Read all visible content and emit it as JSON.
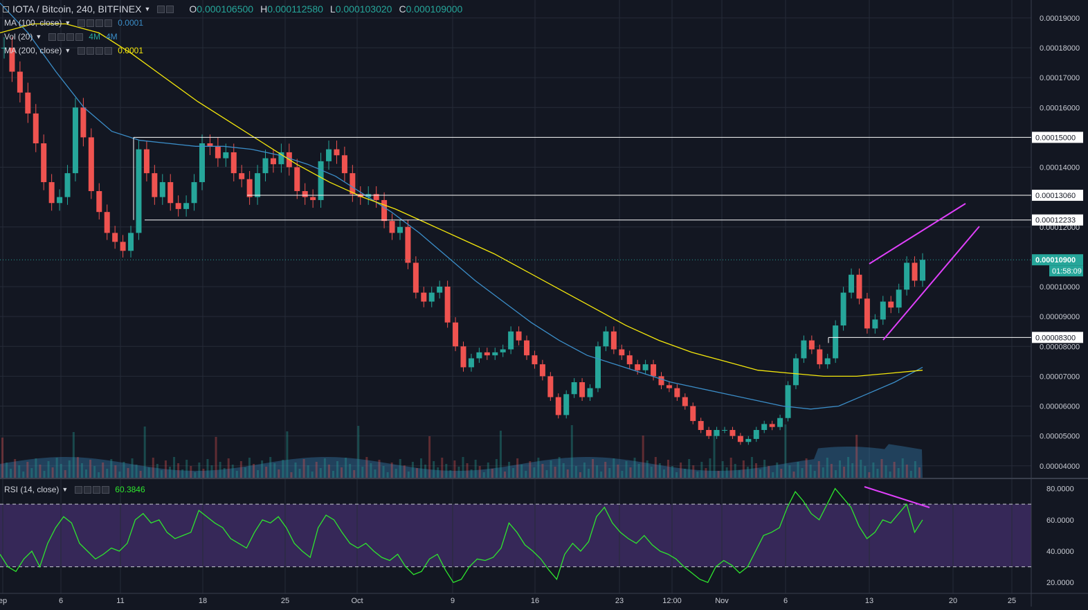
{
  "header": {
    "symbol": "IOTA / Bitcoin, 240, BITFINEX",
    "ohlc": [
      {
        "k": "O",
        "v": "0.000106500"
      },
      {
        "k": "H",
        "v": "0.000112580"
      },
      {
        "k": "L",
        "v": "0.000103020"
      },
      {
        "k": "C",
        "v": "0.000109000"
      }
    ]
  },
  "indicators": [
    {
      "label": "MA (100, close)",
      "values": [
        {
          "text": "0.0001",
          "color": "#3b8ec9"
        }
      ]
    },
    {
      "label": "Vol (20)",
      "values": [
        {
          "text": "4M",
          "color": "#26a69a"
        },
        {
          "text": "4M",
          "color": "#3b8ec9"
        }
      ]
    },
    {
      "label": "MA (200, close)",
      "values": [
        {
          "text": "0.0001",
          "color": "#f5e80b"
        }
      ]
    }
  ],
  "rsi_legend": {
    "label": "RSI (14, close)",
    "value": "60.3846",
    "value_color": "#2ee62e"
  },
  "colors": {
    "up": "#26a69a",
    "down": "#ef5350",
    "ma100": "#3b8ec9",
    "ma200": "#f5e80b",
    "rsi_line": "#2ee62e",
    "rsi_band": "#3b2a5e",
    "trend": "#e040fb",
    "level": "#ffffff"
  },
  "price_axis": {
    "ticks": [
      "0.00019000",
      "0.00018000",
      "0.00017000",
      "0.00016000",
      "0.00014000",
      "0.00012000",
      "0.00010000",
      "0.00009000",
      "0.00008000",
      "0.00007000",
      "0.00006000",
      "0.00005000",
      "0.00004000"
    ],
    "level_labels": [
      "0.00015000",
      "0.00013060",
      "0.00012233",
      "0.00008300"
    ],
    "current_price": "0.00010900",
    "countdown": "01:58:09"
  },
  "rsi_axis": {
    "ticks": [
      "80.0000",
      "60.0000",
      "40.0000",
      "20.0000"
    ]
  },
  "time_axis": {
    "ticks": [
      "ep",
      "6",
      "11",
      "18",
      "25",
      "Oct",
      "9",
      "16",
      "23",
      "12:00",
      "Nov",
      "6",
      "13",
      "20",
      "25"
    ]
  },
  "chart_data": {
    "type": "candlestick",
    "symbol": "IOTA/BTC",
    "interval": "240",
    "exchange": "BITFINEX",
    "ylim": [
      3.6e-05,
      0.000196
    ],
    "close_series": [
      0.00018,
      0.000172,
      0.000165,
      0.000158,
      0.000148,
      0.000135,
      0.000128,
      0.00013,
      0.000138,
      0.00016,
      0.00015,
      0.000132,
      0.000125,
      0.000118,
      0.000115,
      0.000112,
      0.000118,
      0.000146,
      0.000138,
      0.00013,
      0.000135,
      0.000128,
      0.000126,
      0.000128,
      0.000135,
      0.000148,
      0.000147,
      0.000143,
      0.000145,
      0.000138,
      0.000136,
      0.00013,
      0.000138,
      0.000143,
      0.000141,
      0.000145,
      0.00014,
      0.000132,
      0.00013,
      0.000129,
      0.000142,
      0.000146,
      0.000144,
      0.000138,
      0.000131,
      0.00013,
      0.000131,
      0.000129,
      0.000122,
      0.000118,
      0.00012,
      0.000108,
      9.8e-05,
      9.5e-05,
      9.8e-05,
      0.0001,
      8.8e-05,
      8e-05,
      7.3e-05,
      7.6e-05,
      7.8e-05,
      7.7e-05,
      7.8e-05,
      7.9e-05,
      8.5e-05,
      8.2e-05,
      7.7e-05,
      7.4e-05,
      7e-05,
      6.3e-05,
      5.7e-05,
      6.4e-05,
      6.8e-05,
      6.3e-05,
      6.6e-05,
      8e-05,
      8.5e-05,
      7.9e-05,
      7.7e-05,
      7.4e-05,
      7.2e-05,
      7.4e-05,
      7e-05,
      6.7e-05,
      6.6e-05,
      6.3e-05,
      6e-05,
      5.5e-05,
      5.2e-05,
      5e-05,
      5.2e-05,
      5.2e-05,
      5e-05,
      4.8e-05,
      4.9e-05,
      5.2e-05,
      5.4e-05,
      5.3e-05,
      5.6e-05,
      6.7e-05,
      7.6e-05,
      8.2e-05,
      7.9e-05,
      7.4e-05,
      7.6e-05,
      8.7e-05,
      9.8e-05,
      0.000104,
      9.6e-05,
      8.6e-05,
      8.9e-05,
      9.5e-05,
      9.3e-05,
      9.9e-05,
      0.000108,
      0.000102,
      0.000109
    ],
    "ma100": [
      0.000195,
      0.000185,
      0.000172,
      0.00016,
      0.000152,
      0.000149,
      0.000148,
      0.000147,
      0.000147,
      0.000146,
      0.000144,
      0.000141,
      0.000137,
      0.000131,
      0.000125,
      0.000118,
      0.00011,
      0.000102,
      9.5e-05,
      8.8e-05,
      8.2e-05,
      7.7e-05,
      7.4e-05,
      7.1e-05,
      6.8e-05,
      6.6e-05,
      6.4e-05,
      6.2e-05,
      6e-05,
      5.9e-05,
      6e-05,
      6.4e-05,
      6.8e-05,
      7.3e-05
    ],
    "ma200": [
      0.000185,
      0.000188,
      0.000188,
      0.000185,
      0.000178,
      0.00017,
      0.000162,
      0.000155,
      0.000148,
      0.000141,
      0.000135,
      0.00013,
      0.000126,
      0.000121,
      0.000116,
      0.000111,
      0.000105,
      9.9e-05,
      9.3e-05,
      8.7e-05,
      8.2e-05,
      7.8e-05,
      7.5e-05,
      7.2e-05,
      7.1e-05,
      7e-05,
      7e-05,
      7.1e-05,
      7.2e-05
    ],
    "levels": [
      0.00015,
      0.0001306,
      0.00012233,
      8.3e-05
    ],
    "rsi": {
      "ylim": [
        13,
        86
      ],
      "overbought": 70,
      "oversold": 30,
      "values": [
        38,
        30,
        27,
        35,
        40,
        30,
        45,
        55,
        62,
        58,
        45,
        40,
        35,
        38,
        42,
        40,
        45,
        60,
        64,
        58,
        60,
        52,
        48,
        50,
        52,
        66,
        62,
        58,
        55,
        48,
        45,
        42,
        52,
        60,
        58,
        62,
        55,
        45,
        40,
        36,
        55,
        63,
        60,
        52,
        45,
        42,
        45,
        40,
        36,
        34,
        38,
        30,
        25,
        27,
        35,
        38,
        28,
        20,
        22,
        30,
        35,
        34,
        36,
        42,
        58,
        52,
        44,
        40,
        35,
        28,
        22,
        38,
        45,
        40,
        46,
        62,
        68,
        58,
        52,
        48,
        45,
        50,
        44,
        40,
        38,
        35,
        30,
        26,
        22,
        20,
        30,
        34,
        31,
        26,
        30,
        40,
        50,
        52,
        55,
        68,
        78,
        72,
        64,
        60,
        70,
        80,
        74,
        68,
        56,
        48,
        52,
        60,
        58,
        64,
        70,
        52,
        60
      ]
    },
    "trendlines": "rising wedge on price; descending line on RSI highs"
  }
}
